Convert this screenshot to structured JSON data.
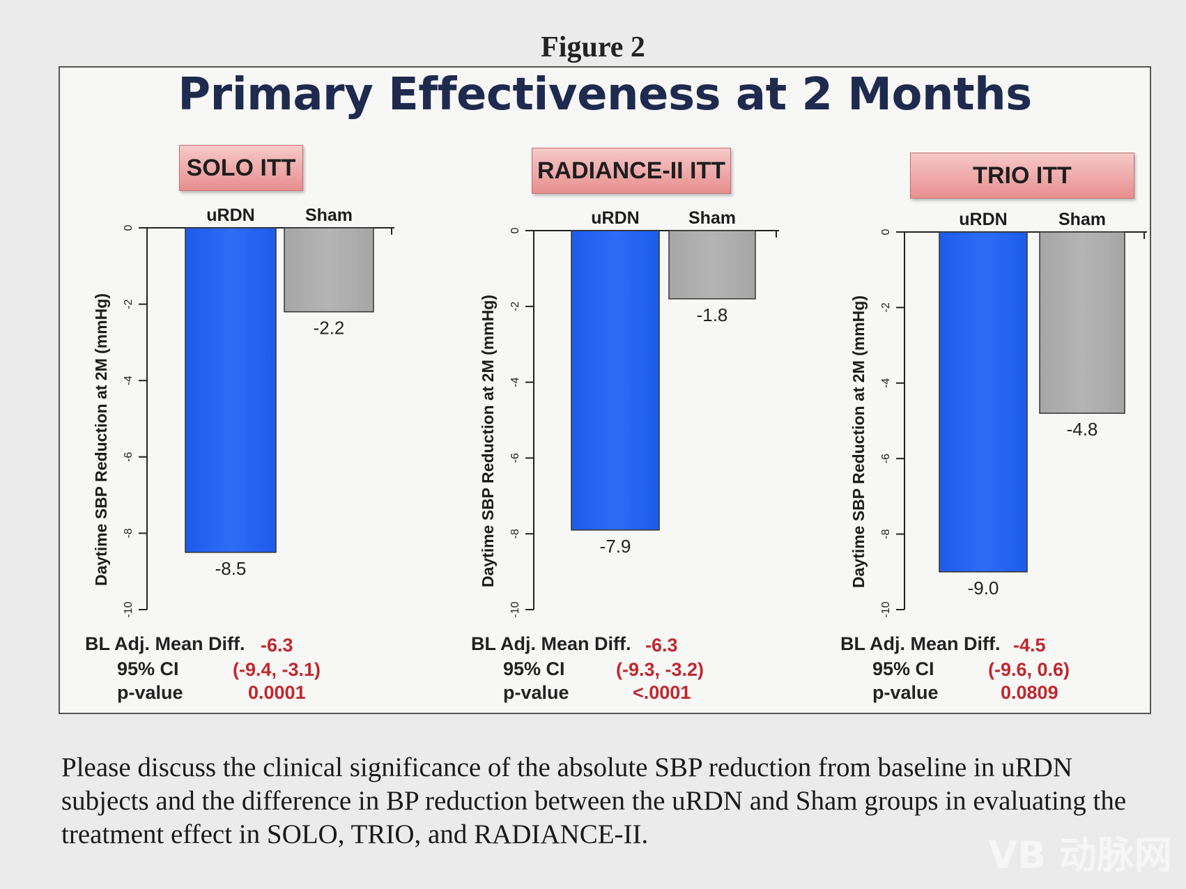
{
  "figure_label": "Figure 2",
  "title": "Primary Effectiveness at 2 Months",
  "question": "Please discuss the clinical significance of the absolute SBP reduction from baseline in uRDN subjects and the difference in BP reduction between the uRDN and Sham groups in evaluating the treatment effect in SOLO, TRIO, and RADIANCE-II.",
  "watermark": "VB 动脉网",
  "colors": {
    "urdn": "#1d5bea",
    "sham": "#a6a6a6",
    "stat_value": "#c0272d",
    "tag": "#eba3a3"
  },
  "stats_labels": {
    "mean_diff": "BL Adj. Mean Diff.",
    "ci": "95% CI",
    "p": "p-value"
  },
  "panels": [
    {
      "tag": "SOLO ITT",
      "mean_diff": "-6.3",
      "ci": "(-9.4, -3.1)",
      "p_value": "0.0001"
    },
    {
      "tag": "RADIANCE-II ITT",
      "mean_diff": "-6.3",
      "ci": "(-9.3, -3.2)",
      "p_value": "<.0001"
    },
    {
      "tag": "TRIO ITT",
      "mean_diff": "-4.5",
      "ci": "(-9.6, 0.6)",
      "p_value": "0.0809"
    }
  ],
  "chart_data": [
    {
      "type": "bar",
      "title": "SOLO ITT",
      "categories": [
        "uRDN",
        "Sham"
      ],
      "values": [
        -8.5,
        -2.2
      ],
      "value_labels": [
        "-8.5",
        "-2.2"
      ],
      "ylabel": "Daytime SBP Reduction at 2M (mmHg)",
      "ylim": [
        -10,
        0
      ],
      "yticks": [
        0,
        -2,
        -4,
        -6,
        -8,
        -10
      ],
      "grid": false
    },
    {
      "type": "bar",
      "title": "RADIANCE-II ITT",
      "categories": [
        "uRDN",
        "Sham"
      ],
      "values": [
        -7.9,
        -1.8
      ],
      "value_labels": [
        "-7.9",
        "-1.8"
      ],
      "ylabel": "Daytime SBP Reduction at 2M (mmHg)",
      "ylim": [
        -10,
        0
      ],
      "yticks": [
        0,
        -2,
        -4,
        -6,
        -8,
        -10
      ],
      "grid": false
    },
    {
      "type": "bar",
      "title": "TRIO ITT",
      "categories": [
        "uRDN",
        "Sham"
      ],
      "values": [
        -9.0,
        -4.8
      ],
      "value_labels": [
        "-9.0",
        "-4.8"
      ],
      "ylabel": "Daytime SBP Reduction at 2M (mmHg)",
      "ylim": [
        -10,
        0
      ],
      "yticks": [
        0,
        -2,
        -4,
        -6,
        -8,
        -10
      ],
      "grid": false
    }
  ]
}
